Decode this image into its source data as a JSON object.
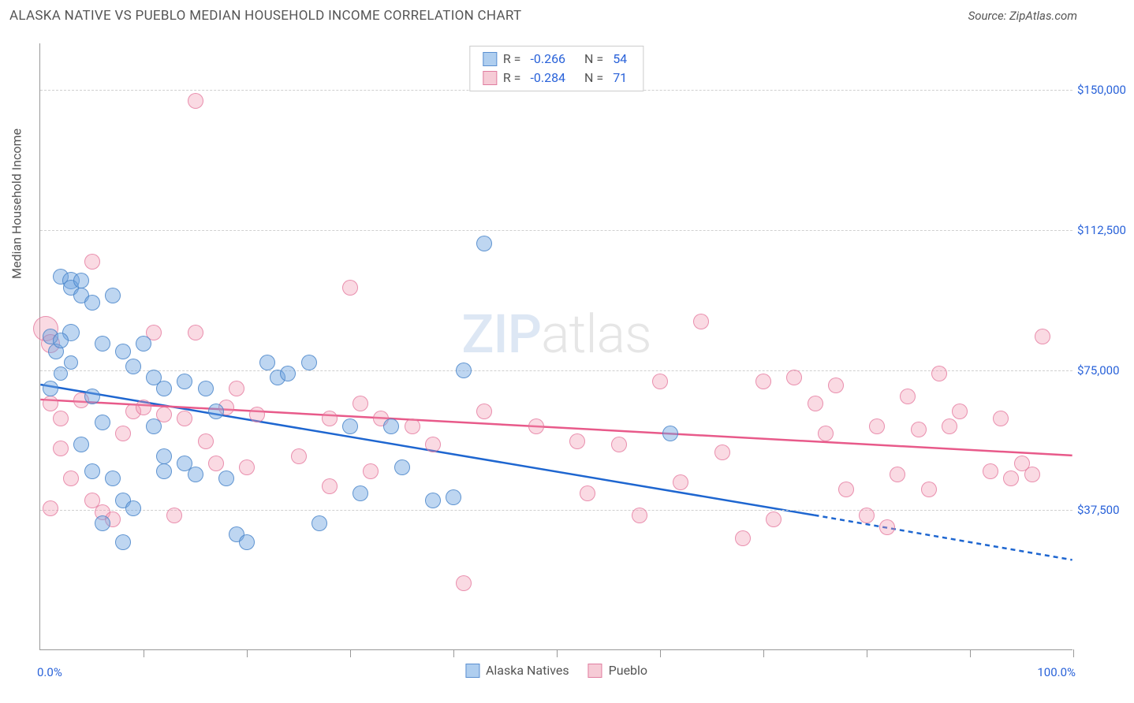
{
  "title": "ALASKA NATIVE VS PUEBLO MEDIAN HOUSEHOLD INCOME CORRELATION CHART",
  "source_label": "Source:",
  "source_name": "ZipAtlas.com",
  "y_axis_label": "Median Household Income",
  "watermark": {
    "zip": "ZIP",
    "atlas": "atlas"
  },
  "chart": {
    "type": "scatter-correlation",
    "background_color": "#ffffff",
    "grid_color": "#d0d0d0",
    "axis_color": "#999999",
    "label_color": "#2962d9",
    "text_color": "#555555",
    "xlim": [
      0,
      100
    ],
    "ylim": [
      0,
      162500
    ],
    "y_gridlines": [
      37500,
      75000,
      112500,
      150000
    ],
    "y_tick_labels": [
      "$37,500",
      "$75,000",
      "$112,500",
      "$150,000"
    ],
    "x_ticks": [
      10,
      20,
      30,
      40,
      50,
      60,
      70,
      80,
      90,
      100
    ],
    "x_tick_labels": {
      "0": "0.0%",
      "100": "100.0%"
    },
    "marker_radius": 10,
    "title_fontsize": 17,
    "label_fontsize": 16,
    "tick_fontsize": 15
  },
  "stats": {
    "rows": [
      {
        "swatch": "blue",
        "r_label": "R =",
        "r_val": "-0.266",
        "n_label": "N =",
        "n_val": "54"
      },
      {
        "swatch": "pink",
        "r_label": "R =",
        "r_val": "-0.284",
        "n_label": "N =",
        "n_val": "71"
      }
    ]
  },
  "legend": {
    "items": [
      {
        "swatch": "blue",
        "label": "Alaska Natives"
      },
      {
        "swatch": "pink",
        "label": "Pueblo"
      }
    ]
  },
  "series": {
    "blue": {
      "color_fill": "rgba(110,165,225,0.45)",
      "color_stroke": "rgba(70,130,200,0.8)",
      "trend": {
        "x1": 0,
        "y1": 71000,
        "x2_solid": 75,
        "y2_solid": 36000,
        "x2_dash": 100,
        "y2_dash": 24000,
        "color": "#1e66d0",
        "width": 2.5
      },
      "points": [
        {
          "x": 1,
          "y": 84000,
          "r": 10
        },
        {
          "x": 1.5,
          "y": 80000,
          "r": 10
        },
        {
          "x": 1,
          "y": 70000,
          "r": 10
        },
        {
          "x": 2,
          "y": 100000,
          "r": 10
        },
        {
          "x": 3,
          "y": 99000,
          "r": 11
        },
        {
          "x": 3,
          "y": 97000,
          "r": 10
        },
        {
          "x": 4,
          "y": 99000,
          "r": 10
        },
        {
          "x": 4,
          "y": 95000,
          "r": 10
        },
        {
          "x": 3,
          "y": 85000,
          "r": 11
        },
        {
          "x": 2,
          "y": 83000,
          "r": 10
        },
        {
          "x": 3,
          "y": 77000,
          "r": 9
        },
        {
          "x": 2,
          "y": 74000,
          "r": 9
        },
        {
          "x": 5,
          "y": 93000,
          "r": 10
        },
        {
          "x": 6,
          "y": 82000,
          "r": 10
        },
        {
          "x": 7,
          "y": 95000,
          "r": 10
        },
        {
          "x": 8,
          "y": 80000,
          "r": 10
        },
        {
          "x": 9,
          "y": 76000,
          "r": 10
        },
        {
          "x": 5,
          "y": 68000,
          "r": 10
        },
        {
          "x": 6,
          "y": 61000,
          "r": 10
        },
        {
          "x": 4,
          "y": 55000,
          "r": 10
        },
        {
          "x": 5,
          "y": 48000,
          "r": 10
        },
        {
          "x": 7,
          "y": 46000,
          "r": 10
        },
        {
          "x": 8,
          "y": 40000,
          "r": 10
        },
        {
          "x": 9,
          "y": 38000,
          "r": 10
        },
        {
          "x": 6,
          "y": 34000,
          "r": 10
        },
        {
          "x": 8,
          "y": 29000,
          "r": 10
        },
        {
          "x": 10,
          "y": 82000,
          "r": 10
        },
        {
          "x": 11,
          "y": 73000,
          "r": 10
        },
        {
          "x": 12,
          "y": 70000,
          "r": 10
        },
        {
          "x": 11,
          "y": 60000,
          "r": 10
        },
        {
          "x": 12,
          "y": 52000,
          "r": 10
        },
        {
          "x": 12,
          "y": 48000,
          "r": 10
        },
        {
          "x": 14,
          "y": 72000,
          "r": 10
        },
        {
          "x": 14,
          "y": 50000,
          "r": 10
        },
        {
          "x": 15,
          "y": 47000,
          "r": 10
        },
        {
          "x": 16,
          "y": 70000,
          "r": 10
        },
        {
          "x": 17,
          "y": 64000,
          "r": 10
        },
        {
          "x": 18,
          "y": 46000,
          "r": 10
        },
        {
          "x": 19,
          "y": 31000,
          "r": 10
        },
        {
          "x": 20,
          "y": 29000,
          "r": 10
        },
        {
          "x": 22,
          "y": 77000,
          "r": 10
        },
        {
          "x": 23,
          "y": 73000,
          "r": 10
        },
        {
          "x": 24,
          "y": 74000,
          "r": 10
        },
        {
          "x": 26,
          "y": 77000,
          "r": 10
        },
        {
          "x": 27,
          "y": 34000,
          "r": 10
        },
        {
          "x": 30,
          "y": 60000,
          "r": 10
        },
        {
          "x": 31,
          "y": 42000,
          "r": 10
        },
        {
          "x": 34,
          "y": 60000,
          "r": 10
        },
        {
          "x": 35,
          "y": 49000,
          "r": 10
        },
        {
          "x": 38,
          "y": 40000,
          "r": 10
        },
        {
          "x": 40,
          "y": 41000,
          "r": 10
        },
        {
          "x": 41,
          "y": 75000,
          "r": 10
        },
        {
          "x": 43,
          "y": 109000,
          "r": 10
        },
        {
          "x": 61,
          "y": 58000,
          "r": 10
        }
      ]
    },
    "pink": {
      "color_fill": "rgba(240,150,175,0.35)",
      "color_stroke": "rgba(225,110,150,0.7)",
      "trend": {
        "x1": 0,
        "y1": 67000,
        "x2_solid": 100,
        "y2_solid": 52000,
        "color": "#e85a8a",
        "width": 2.5
      },
      "points": [
        {
          "x": 0.5,
          "y": 86000,
          "r": 16
        },
        {
          "x": 1,
          "y": 82000,
          "r": 12
        },
        {
          "x": 1,
          "y": 66000,
          "r": 10
        },
        {
          "x": 2,
          "y": 62000,
          "r": 10
        },
        {
          "x": 2,
          "y": 54000,
          "r": 10
        },
        {
          "x": 3,
          "y": 46000,
          "r": 10
        },
        {
          "x": 1,
          "y": 38000,
          "r": 10
        },
        {
          "x": 5,
          "y": 104000,
          "r": 10
        },
        {
          "x": 4,
          "y": 67000,
          "r": 10
        },
        {
          "x": 5,
          "y": 40000,
          "r": 10
        },
        {
          "x": 6,
          "y": 37000,
          "r": 10
        },
        {
          "x": 7,
          "y": 35000,
          "r": 10
        },
        {
          "x": 8,
          "y": 58000,
          "r": 10
        },
        {
          "x": 9,
          "y": 64000,
          "r": 10
        },
        {
          "x": 10,
          "y": 65000,
          "r": 10
        },
        {
          "x": 11,
          "y": 85000,
          "r": 10
        },
        {
          "x": 12,
          "y": 63000,
          "r": 10
        },
        {
          "x": 13,
          "y": 36000,
          "r": 10
        },
        {
          "x": 14,
          "y": 62000,
          "r": 10
        },
        {
          "x": 15,
          "y": 147000,
          "r": 10
        },
        {
          "x": 15,
          "y": 85000,
          "r": 10
        },
        {
          "x": 16,
          "y": 56000,
          "r": 10
        },
        {
          "x": 17,
          "y": 50000,
          "r": 10
        },
        {
          "x": 18,
          "y": 65000,
          "r": 10
        },
        {
          "x": 19,
          "y": 70000,
          "r": 10
        },
        {
          "x": 20,
          "y": 49000,
          "r": 10
        },
        {
          "x": 21,
          "y": 63000,
          "r": 10
        },
        {
          "x": 25,
          "y": 52000,
          "r": 10
        },
        {
          "x": 28,
          "y": 62000,
          "r": 10
        },
        {
          "x": 28,
          "y": 44000,
          "r": 10
        },
        {
          "x": 30,
          "y": 97000,
          "r": 10
        },
        {
          "x": 31,
          "y": 66000,
          "r": 10
        },
        {
          "x": 32,
          "y": 48000,
          "r": 10
        },
        {
          "x": 33,
          "y": 62000,
          "r": 10
        },
        {
          "x": 36,
          "y": 60000,
          "r": 10
        },
        {
          "x": 38,
          "y": 55000,
          "r": 10
        },
        {
          "x": 41,
          "y": 18000,
          "r": 10
        },
        {
          "x": 43,
          "y": 64000,
          "r": 10
        },
        {
          "x": 48,
          "y": 60000,
          "r": 10
        },
        {
          "x": 52,
          "y": 56000,
          "r": 10
        },
        {
          "x": 53,
          "y": 42000,
          "r": 10
        },
        {
          "x": 56,
          "y": 55000,
          "r": 10
        },
        {
          "x": 58,
          "y": 36000,
          "r": 10
        },
        {
          "x": 60,
          "y": 72000,
          "r": 10
        },
        {
          "x": 62,
          "y": 45000,
          "r": 10
        },
        {
          "x": 64,
          "y": 88000,
          "r": 10
        },
        {
          "x": 66,
          "y": 53000,
          "r": 10
        },
        {
          "x": 68,
          "y": 30000,
          "r": 10
        },
        {
          "x": 70,
          "y": 72000,
          "r": 10
        },
        {
          "x": 71,
          "y": 35000,
          "r": 10
        },
        {
          "x": 73,
          "y": 73000,
          "r": 10
        },
        {
          "x": 75,
          "y": 66000,
          "r": 10
        },
        {
          "x": 76,
          "y": 58000,
          "r": 10
        },
        {
          "x": 77,
          "y": 71000,
          "r": 10
        },
        {
          "x": 78,
          "y": 43000,
          "r": 10
        },
        {
          "x": 80,
          "y": 36000,
          "r": 10
        },
        {
          "x": 81,
          "y": 60000,
          "r": 10
        },
        {
          "x": 82,
          "y": 33000,
          "r": 10
        },
        {
          "x": 83,
          "y": 47000,
          "r": 10
        },
        {
          "x": 84,
          "y": 68000,
          "r": 10
        },
        {
          "x": 85,
          "y": 59000,
          "r": 10
        },
        {
          "x": 86,
          "y": 43000,
          "r": 10
        },
        {
          "x": 87,
          "y": 74000,
          "r": 10
        },
        {
          "x": 88,
          "y": 60000,
          "r": 10
        },
        {
          "x": 89,
          "y": 64000,
          "r": 10
        },
        {
          "x": 92,
          "y": 48000,
          "r": 10
        },
        {
          "x": 93,
          "y": 62000,
          "r": 10
        },
        {
          "x": 94,
          "y": 46000,
          "r": 10
        },
        {
          "x": 95,
          "y": 50000,
          "r": 10
        },
        {
          "x": 96,
          "y": 47000,
          "r": 10
        },
        {
          "x": 97,
          "y": 84000,
          "r": 10
        }
      ]
    }
  }
}
